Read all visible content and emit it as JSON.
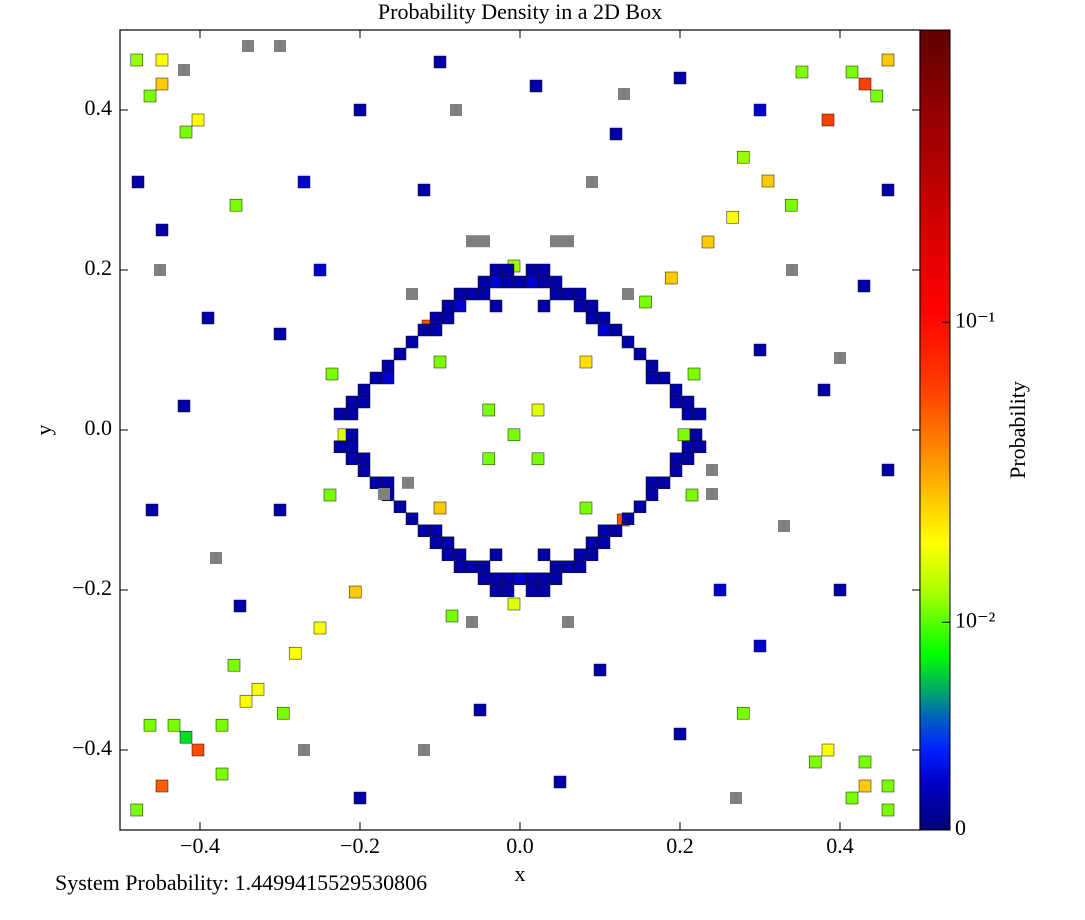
{
  "chart_data": {
    "type": "heatmap-scatter",
    "title": "Probability Density in a 2D Box",
    "xlabel": "x",
    "ylabel": "y",
    "colorbar_label": "Probability",
    "footer": "System Probability: 1.4499415529530806",
    "xlim": [
      -0.5,
      0.5
    ],
    "ylim": [
      -0.5,
      0.5
    ],
    "xticks": [
      {
        "value": -0.4,
        "label": "−0.4"
      },
      {
        "value": -0.2,
        "label": "−0.2"
      },
      {
        "value": 0,
        "label": "0.0"
      },
      0.2,
      0.4
    ],
    "yticks": [
      {
        "value": -0.4,
        "label": "−0.4"
      },
      {
        "value": -0.2,
        "label": "−0.2"
      },
      {
        "value": 0,
        "label": "0.0"
      },
      0.2,
      0.4
    ],
    "clim": [
      0.00203,
      0.942
    ],
    "clog": true,
    "cticks": [
      0,
      {
        "value": 0.01,
        "label": "10⁻²"
      },
      {
        "value": 0.1,
        "label": "10⁻¹"
      }
    ],
    "colormap": [
      [
        0,
        "#00007a"
      ],
      [
        0.06,
        "#0000c8"
      ],
      [
        0.1,
        "#0020ff"
      ],
      [
        0.14,
        "#0060c0"
      ],
      [
        0.17,
        "#00a070"
      ],
      [
        0.22,
        "#00ff00"
      ],
      [
        0.3,
        "#b0ff00"
      ],
      [
        0.36,
        "#ffff00"
      ],
      [
        0.45,
        "#ffa000"
      ],
      [
        0.55,
        "#ff4000"
      ],
      [
        0.65,
        "#ff0000"
      ],
      [
        0.8,
        "#c00000"
      ],
      [
        1,
        "#600000"
      ]
    ],
    "bad_color": "#808080",
    "points": [
      [
        -0.479,
        0.4625,
        0.012
      ],
      [
        -0.4475,
        0.4625,
        0.018
      ],
      [
        -0.4475,
        0.4325,
        0.025
      ],
      [
        -0.4625,
        0.4175,
        0.011
      ],
      [
        -0.4175,
        0.3725,
        0.011
      ],
      [
        -0.4025,
        0.3875,
        0.018
      ],
      [
        0.43125,
        0.4325,
        0.06
      ],
      [
        0.385,
        0.3875,
        0.06
      ],
      [
        0.46,
        0.4625,
        0.025
      ],
      [
        0.415,
        0.4475,
        0.011
      ],
      [
        0.446,
        0.4175,
        0.011
      ],
      [
        0.3525,
        0.4475,
        0.011
      ],
      [
        0.235,
        0.235,
        0.025
      ],
      [
        0.189,
        0.19,
        0.025
      ],
      [
        0.31,
        0.31125,
        0.025
      ],
      [
        0.279,
        0.341,
        0.012
      ],
      [
        0.266,
        0.266,
        0.018
      ],
      [
        0.339,
        0.281,
        0.011
      ],
      [
        -0.115,
        0.13,
        0.055
      ],
      [
        -0.0075,
        0.205,
        0.012
      ],
      [
        0.0825,
        0.085,
        0.022
      ],
      [
        -0.1,
        0.085,
        0.011
      ],
      [
        -0.039,
        0.025,
        0.011
      ],
      [
        0.0225,
        0.025,
        0.016
      ],
      [
        -0.22,
        -0.006,
        0.016
      ],
      [
        -0.0075,
        -0.006,
        0.011
      ],
      [
        0.205,
        -0.006,
        0.011
      ],
      [
        -0.039,
        -0.036,
        0.011
      ],
      [
        0.0225,
        -0.036,
        0.011
      ],
      [
        -0.1,
        -0.0975,
        0.025
      ],
      [
        0.0825,
        -0.0975,
        0.011
      ],
      [
        0.129,
        -0.1125,
        0.05
      ],
      [
        -0.0075,
        -0.2175,
        0.016
      ],
      [
        -0.206,
        -0.2025,
        0.025
      ],
      [
        -0.25,
        -0.2475,
        0.018
      ],
      [
        -0.281,
        -0.279,
        0.018
      ],
      [
        -0.3575,
        -0.294,
        0.011
      ],
      [
        -0.3275,
        -0.324,
        0.018
      ],
      [
        -0.3425,
        -0.339,
        0.018
      ],
      [
        -0.296,
        -0.354,
        0.011
      ],
      [
        -0.3725,
        -0.369,
        0.011
      ],
      [
        -0.4625,
        -0.369,
        0.011
      ],
      [
        -0.4325,
        -0.369,
        0.011
      ],
      [
        -0.4175,
        -0.384,
        0.007
      ],
      [
        -0.4025,
        -0.4,
        0.055
      ],
      [
        -0.4475,
        -0.445,
        0.05
      ],
      [
        -0.479,
        -0.475,
        0.011
      ],
      [
        -0.3725,
        -0.43,
        0.011
      ],
      [
        0.279,
        -0.354,
        0.011
      ],
      [
        0.385,
        -0.4,
        0.018
      ],
      [
        0.369,
        -0.415,
        0.011
      ],
      [
        0.43125,
        -0.415,
        0.011
      ],
      [
        0.43125,
        -0.445,
        0.025
      ],
      [
        0.46,
        -0.445,
        0.011
      ],
      [
        0.415,
        -0.46,
        0.011
      ],
      [
        0.46,
        -0.475,
        0.011
      ],
      [
        -0.2375,
        -0.08125,
        0.011
      ],
      [
        -0.235,
        0.07,
        0.011
      ],
      [
        0.157,
        0.16,
        0.011
      ],
      [
        0.2175,
        0.07,
        0.011
      ],
      [
        0.215,
        -0.08125,
        0.011
      ],
      [
        -0.085,
        -0.2325,
        0.011
      ],
      [
        -0.355,
        0.281,
        0.011
      ],
      [
        -0.03,
        0.2,
        0.0025
      ],
      [
        -0.015,
        0.2,
        0.0025
      ],
      [
        0.015,
        0.2,
        0.0025
      ],
      [
        0.03,
        0.2,
        0.0025
      ],
      [
        -0.045,
        0.185,
        0.0025
      ],
      [
        -0.03,
        0.185,
        0.003
      ],
      [
        -0.015,
        0.185,
        0.0025
      ],
      [
        0,
        0.185,
        0.0025
      ],
      [
        0.015,
        0.185,
        0.003
      ],
      [
        0.03,
        0.185,
        0.0025
      ],
      [
        0.045,
        0.185,
        0.0025
      ],
      [
        -0.075,
        0.17,
        0.0025
      ],
      [
        -0.06,
        0.17,
        0.0025
      ],
      [
        -0.045,
        0.17,
        0.0025
      ],
      [
        0.045,
        0.17,
        0.0025
      ],
      [
        0.06,
        0.17,
        0.0025
      ],
      [
        0.075,
        0.17,
        0.0025
      ],
      [
        -0.09,
        0.155,
        0.0025
      ],
      [
        -0.075,
        0.155,
        0.003
      ],
      [
        -0.03,
        0.155,
        0.0025
      ],
      [
        0.03,
        0.155,
        0.0025
      ],
      [
        0.075,
        0.155,
        0.0025
      ],
      [
        0.09,
        0.155,
        0.0025
      ],
      [
        -0.105,
        0.14,
        0.0025
      ],
      [
        -0.09,
        0.14,
        0.0025
      ],
      [
        0.09,
        0.14,
        0.0025
      ],
      [
        0.105,
        0.14,
        0.0025
      ],
      [
        -0.12,
        0.125,
        0.0025
      ],
      [
        -0.105,
        0.125,
        0.0025
      ],
      [
        0.105,
        0.125,
        0.003
      ],
      [
        0.12,
        0.125,
        0.0025
      ],
      [
        -0.135,
        0.11,
        0.0025
      ],
      [
        0.135,
        0.11,
        0.0025
      ],
      [
        -0.15,
        0.095,
        0.0025
      ],
      [
        0.15,
        0.095,
        0.0025
      ],
      [
        -0.165,
        0.08,
        0.0025
      ],
      [
        0.165,
        0.08,
        0.0025
      ],
      [
        -0.18,
        0.065,
        0.0025
      ],
      [
        -0.165,
        0.065,
        0.003
      ],
      [
        0.165,
        0.065,
        0.0025
      ],
      [
        0.18,
        0.065,
        0.0025
      ],
      [
        -0.195,
        0.05,
        0.0025
      ],
      [
        0.195,
        0.05,
        0.0025
      ],
      [
        -0.21,
        0.035,
        0.0025
      ],
      [
        -0.195,
        0.035,
        0.0025
      ],
      [
        0.195,
        0.035,
        0.0025
      ],
      [
        0.21,
        0.035,
        0.0025
      ],
      [
        -0.225,
        0.02,
        0.0025
      ],
      [
        -0.21,
        0.02,
        0.0025
      ],
      [
        0.21,
        0.02,
        0.0025
      ],
      [
        0.225,
        0.02,
        0.0025
      ],
      [
        -0.21,
        -0.006,
        0.0025
      ],
      [
        0.22,
        -0.006,
        0.0025
      ],
      [
        -0.225,
        -0.021,
        0.0025
      ],
      [
        -0.21,
        -0.021,
        0.0025
      ],
      [
        0.21,
        -0.021,
        0.0025
      ],
      [
        0.225,
        -0.021,
        0.0025
      ],
      [
        -0.21,
        -0.036,
        0.0025
      ],
      [
        -0.195,
        -0.036,
        0.0025
      ],
      [
        0.195,
        -0.036,
        0.0025
      ],
      [
        0.21,
        -0.036,
        0.0025
      ],
      [
        -0.195,
        -0.051,
        0.0025
      ],
      [
        0.195,
        -0.051,
        0.0025
      ],
      [
        -0.18,
        -0.066,
        0.0025
      ],
      [
        -0.165,
        -0.066,
        0.0025
      ],
      [
        0.165,
        -0.066,
        0.0025
      ],
      [
        0.18,
        -0.066,
        0.0025
      ],
      [
        -0.165,
        -0.081,
        0.0025
      ],
      [
        0.165,
        -0.081,
        0.0025
      ],
      [
        -0.15,
        -0.096,
        0.0025
      ],
      [
        0.15,
        -0.096,
        0.0025
      ],
      [
        -0.135,
        -0.111,
        0.0025
      ],
      [
        0.135,
        -0.111,
        0.0025
      ],
      [
        -0.12,
        -0.126,
        0.0025
      ],
      [
        -0.105,
        -0.126,
        0.0025
      ],
      [
        0.105,
        -0.126,
        0.0025
      ],
      [
        0.12,
        -0.126,
        0.0025
      ],
      [
        -0.105,
        -0.141,
        0.0025
      ],
      [
        -0.09,
        -0.141,
        0.0025
      ],
      [
        0.09,
        -0.141,
        0.0025
      ],
      [
        0.105,
        -0.141,
        0.0025
      ],
      [
        -0.09,
        -0.156,
        0.0025
      ],
      [
        -0.075,
        -0.156,
        0.0025
      ],
      [
        -0.03,
        -0.156,
        0.0025
      ],
      [
        0.03,
        -0.156,
        0.0025
      ],
      [
        0.075,
        -0.156,
        0.0025
      ],
      [
        0.09,
        -0.156,
        0.0025
      ],
      [
        -0.075,
        -0.171,
        0.0025
      ],
      [
        -0.06,
        -0.171,
        0.0025
      ],
      [
        -0.045,
        -0.171,
        0.0025
      ],
      [
        0.045,
        -0.171,
        0.0025
      ],
      [
        0.06,
        -0.171,
        0.0025
      ],
      [
        0.075,
        -0.171,
        0.0025
      ],
      [
        -0.045,
        -0.186,
        0.0025
      ],
      [
        -0.03,
        -0.186,
        0.0025
      ],
      [
        -0.015,
        -0.186,
        0.0025
      ],
      [
        0,
        -0.186,
        0.003
      ],
      [
        0.015,
        -0.186,
        0.0025
      ],
      [
        0.03,
        -0.186,
        0.0025
      ],
      [
        0.045,
        -0.186,
        0.0025
      ],
      [
        -0.03,
        -0.201,
        0.0025
      ],
      [
        -0.015,
        -0.201,
        0.0025
      ],
      [
        0.015,
        -0.201,
        0.0025
      ],
      [
        0.03,
        -0.201,
        0.0025
      ],
      [
        -0.06,
        0.236,
        0
      ],
      [
        -0.045,
        0.236,
        0
      ],
      [
        0.045,
        0.236,
        0
      ],
      [
        0.06,
        0.236,
        0
      ],
      [
        -0.135,
        0.17,
        0
      ],
      [
        0.135,
        0.17,
        0
      ],
      [
        -0.14,
        -0.066,
        0
      ],
      [
        -0.17,
        -0.08,
        0
      ],
      [
        0.24,
        -0.08,
        0
      ],
      [
        0.24,
        -0.05,
        0
      ],
      [
        -0.06,
        -0.24,
        0
      ],
      [
        0.06,
        -0.24,
        0
      ],
      [
        -0.42,
        0.45,
        0
      ],
      [
        -0.34,
        0.48,
        0
      ],
      [
        -0.3,
        0.48,
        0
      ],
      [
        0.13,
        0.42,
        0
      ],
      [
        -0.08,
        0.4,
        0
      ],
      [
        0.34,
        0.2,
        0
      ],
      [
        0.4,
        0.09,
        0
      ],
      [
        -0.45,
        0.2,
        0
      ],
      [
        -0.27,
        -0.4,
        0
      ],
      [
        0.27,
        -0.46,
        0
      ],
      [
        0.33,
        -0.12,
        0
      ],
      [
        -0.38,
        -0.16,
        0
      ],
      [
        0.09,
        0.31,
        0
      ],
      [
        -0.12,
        -0.4,
        0
      ],
      [
        -0.4775,
        0.31,
        0.0025
      ],
      [
        -0.4475,
        0.25,
        0.0025
      ],
      [
        -0.39,
        0.14,
        0.0025
      ],
      [
        -0.42,
        0.03,
        0.0025
      ],
      [
        -0.46,
        -0.1,
        0.0025
      ],
      [
        -0.35,
        -0.22,
        0.0025
      ],
      [
        -0.3,
        0.12,
        0.0025
      ],
      [
        -0.27,
        0.31,
        0.003
      ],
      [
        -0.2,
        0.4,
        0.0025
      ],
      [
        -0.1,
        0.46,
        0.0025
      ],
      [
        0.02,
        0.43,
        0.0025
      ],
      [
        0.12,
        0.37,
        0.0025
      ],
      [
        0.2,
        0.44,
        0.0025
      ],
      [
        0.3,
        0.4,
        0.003
      ],
      [
        0.46,
        0.3,
        0.0025
      ],
      [
        0.43,
        0.18,
        0.0025
      ],
      [
        0.38,
        0.05,
        0.0025
      ],
      [
        0.46,
        -0.05,
        0.0025
      ],
      [
        0.4,
        -0.2,
        0.0025
      ],
      [
        0.3,
        -0.27,
        0.003
      ],
      [
        0.2,
        -0.38,
        0.0025
      ],
      [
        0.05,
        -0.44,
        0.0025
      ],
      [
        -0.05,
        -0.35,
        0.0025
      ],
      [
        -0.2,
        -0.46,
        0.0025
      ],
      [
        -0.3,
        -0.1,
        0.0025
      ],
      [
        0.3,
        0.1,
        0.0025
      ],
      [
        -0.12,
        0.3,
        0.0025
      ],
      [
        0.1,
        -0.3,
        0.0025
      ],
      [
        -0.25,
        0.2,
        0.003
      ],
      [
        0.25,
        -0.2,
        0.003
      ]
    ]
  }
}
